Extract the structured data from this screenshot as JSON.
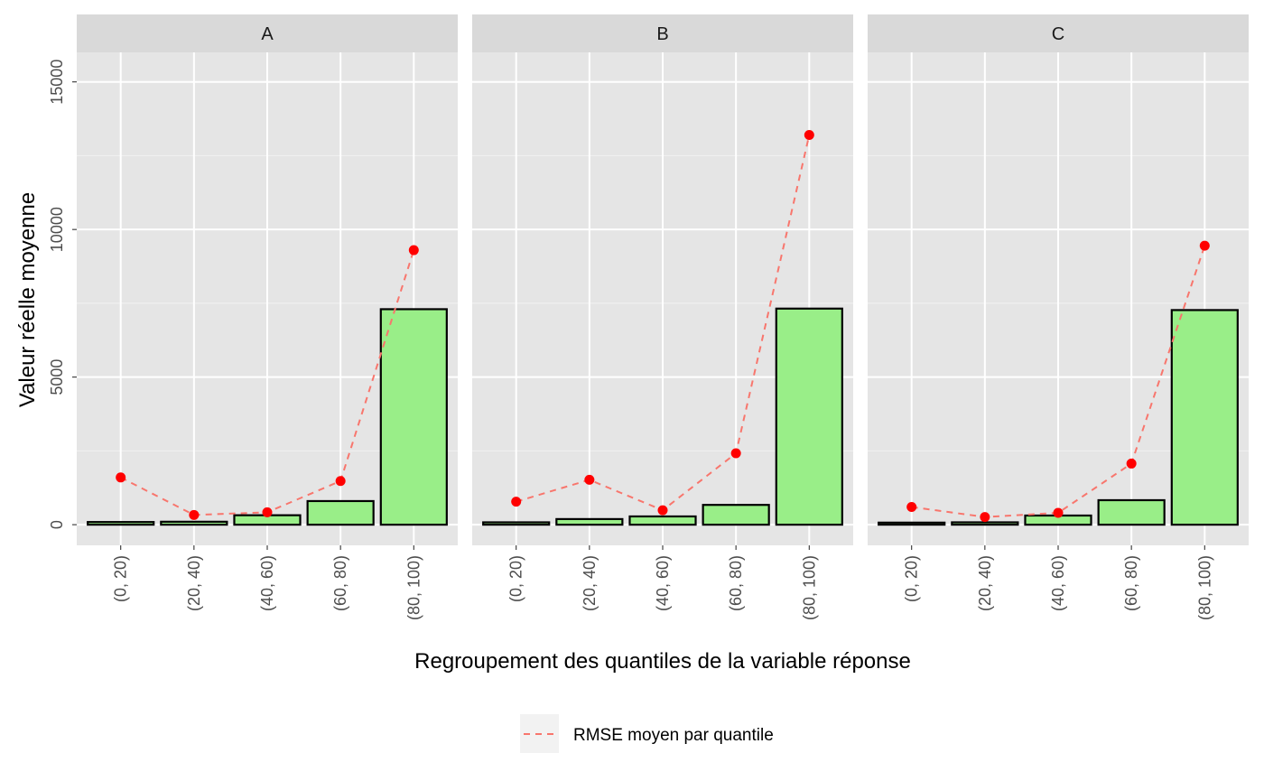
{
  "chart_data": {
    "type": "bar",
    "xlabel": "Regroupement des quantiles de la variable réponse",
    "ylabel": "Valeur réelle moyenne",
    "ylim": [
      -700,
      16000
    ],
    "yticks": [
      0,
      5000,
      10000,
      15000
    ],
    "categories": [
      "(0, 20)",
      "(20, 40)",
      "(40, 60)",
      "(60, 80)",
      "(80, 100)"
    ],
    "grid": true,
    "legend": {
      "position": "bottom",
      "entries": [
        {
          "label": "RMSE moyen par quantile",
          "color": "#f8766d",
          "style": "dashed"
        }
      ]
    },
    "colors": {
      "bar_fill": "#99ee88",
      "bar_stroke": "#000000",
      "point": "#ff0000",
      "line": "#f8766d",
      "panel_bg": "#e5e5e5",
      "strip_bg": "#d9d9d9"
    },
    "facets": [
      {
        "label": "A",
        "bar_values": [
          90,
          100,
          320,
          800,
          7300
        ],
        "rmse_values": [
          1600,
          330,
          420,
          1480,
          9300
        ]
      },
      {
        "label": "B",
        "bar_values": [
          80,
          190,
          280,
          670,
          7320
        ],
        "rmse_values": [
          780,
          1520,
          490,
          2420,
          13200
        ]
      },
      {
        "label": "C",
        "bar_values": [
          70,
          80,
          310,
          830,
          7270
        ],
        "rmse_values": [
          600,
          260,
          400,
          2070,
          9450
        ]
      }
    ]
  }
}
